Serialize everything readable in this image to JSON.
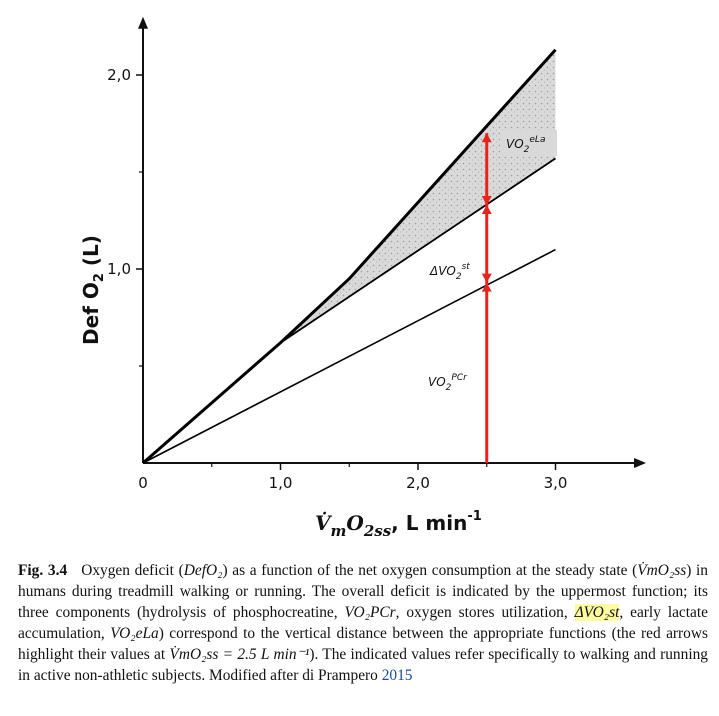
{
  "chart_data": {
    "type": "line",
    "xlabel": "V̇mO2ss, L min⁻¹",
    "ylabel": "Def O2 (L)",
    "x_ticks": [
      "0",
      "1,0",
      "2,0",
      "3,0"
    ],
    "y_ticks": [
      "1,0",
      "2,0"
    ],
    "xlim": [
      0,
      3.6
    ],
    "ylim": [
      0,
      2.3
    ],
    "series": [
      {
        "x": [
          0,
          3.0
        ],
        "y": [
          0,
          1.1
        ]
      },
      {
        "x": [
          0,
          1.0,
          3.0
        ],
        "y": [
          0,
          0.62,
          1.57
        ]
      },
      {
        "x": [
          0,
          1.0,
          1.5,
          3.0
        ],
        "y": [
          0,
          0.62,
          0.95,
          2.13
        ]
      }
    ],
    "shaded_region": {
      "between": [
        "upper",
        "middle"
      ],
      "x_start": 1.0,
      "x_end": 3.0
    },
    "marker_x": 2.5,
    "marker_points": [
      0.93,
      1.33,
      1.7
    ],
    "annotations": [
      {
        "text": "VO2eLa",
        "x": 2.7,
        "y": 1.67
      },
      {
        "text": "ΔVO2st",
        "x": 2.25,
        "y": 1.0
      },
      {
        "text": "VO2PCr",
        "x": 2.2,
        "y": 0.4
      }
    ],
    "colors": {
      "lines": "#000000",
      "marker": "#e8221c",
      "shade": "#c8c8c8",
      "label_box": "#d9d9d9"
    }
  },
  "caption": {
    "label": "Fig. 3.4",
    "part1": "Oxygen deficit (",
    "defo2": "DefO₂",
    "part2": ") as a function of the net oxygen consumption at the steady state (",
    "vmo2ss": "V̇mO₂ss",
    "part3": ") in humans during treadmill walking or running. The overall deficit is indicated by the uppermost function; its three components (hydrolysis of phosphocreatine, ",
    "vo2pcr": "VO₂PCr",
    "part4": ", oxygen stores utilization, ",
    "dvo2st": "ΔVO₂st",
    "part5": ", early lactate accumulation, ",
    "vo2ela": "VO₂eLa",
    "part6": ") correspond to the vertical distance between the appropriate functions (the red arrows highlight their values at ",
    "vmo2ss_eq": "V̇mO₂ss = 2.5 L min⁻¹",
    "part7": "). The indicated values refer specifically to walking and running in active non-athletic subjects. Modified after di Prampero ",
    "ref": "2015"
  }
}
